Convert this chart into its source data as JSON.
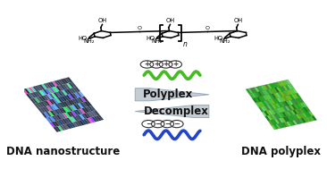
{
  "bg_color": "#ffffff",
  "arrow_color": "#c5ccd4",
  "arrow_edge_color": "#9aaabb",
  "polyplex_label": "Polyplex",
  "decomplex_label": "Decomplex",
  "dna_nano_label": "DNA nanostructure",
  "dna_poly_label": "DNA polyplex",
  "green_wave_color": "#44bb22",
  "blue_wave_color": "#2244cc",
  "label_fontsize": 8.5,
  "arrow_fontsize": 8.5,
  "figsize": [
    3.66,
    1.89
  ],
  "dpi": 100
}
